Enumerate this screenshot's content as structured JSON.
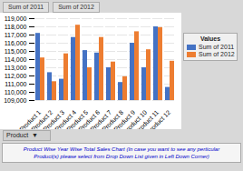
{
  "chart_data": {
    "type": "bar",
    "title": "Product Wise Year Wise Total Sales Chart (In case you want to see any perticular\nProduct(s) please select from Drop Down List given in Left Down Corner)",
    "annotations": [
      "Sum of 2011",
      "Sum of 2012",
      "Values",
      "Product  ▼"
    ],
    "categories": [
      "Product 1",
      "Product 2",
      "Product 3",
      "Product 4",
      "Product 5",
      "Product 6",
      "Product 7",
      "Product 8",
      "Product 9",
      "Product 10",
      "Product 11",
      "Product 12"
    ],
    "series": [
      {
        "name": "Sum of 2011",
        "color": "#4472C4",
        "values": [
          117200,
          112400,
          111600,
          116700,
          115100,
          114800,
          113000,
          111200,
          116000,
          113000,
          118000,
          110600
        ]
      },
      {
        "name": "Sum of 2012",
        "color": "#ED7D31",
        "values": [
          114200,
          111300,
          114700,
          118200,
          113000,
          116700,
          113700,
          111900,
          117400,
          115200,
          117900,
          113800
        ]
      }
    ],
    "ylim": [
      109000,
      119000
    ],
    "yticks": [
      {
        "value": 109000,
        "label": "109,000"
      },
      {
        "value": 110000,
        "label": "110,000"
      },
      {
        "value": 111000,
        "label": "111,000"
      },
      {
        "value": 112000,
        "label": "112,000"
      },
      {
        "value": 113000,
        "label": "113,000"
      },
      {
        "value": 114000,
        "label": "114,000"
      },
      {
        "value": 115000,
        "label": "115,000"
      },
      {
        "value": 116000,
        "label": "116,000"
      },
      {
        "value": 117000,
        "label": "117,000"
      },
      {
        "value": 118000,
        "label": "118,000"
      },
      {
        "value": 119000,
        "label": "119,000"
      }
    ],
    "grid": true,
    "legend": "right"
  }
}
